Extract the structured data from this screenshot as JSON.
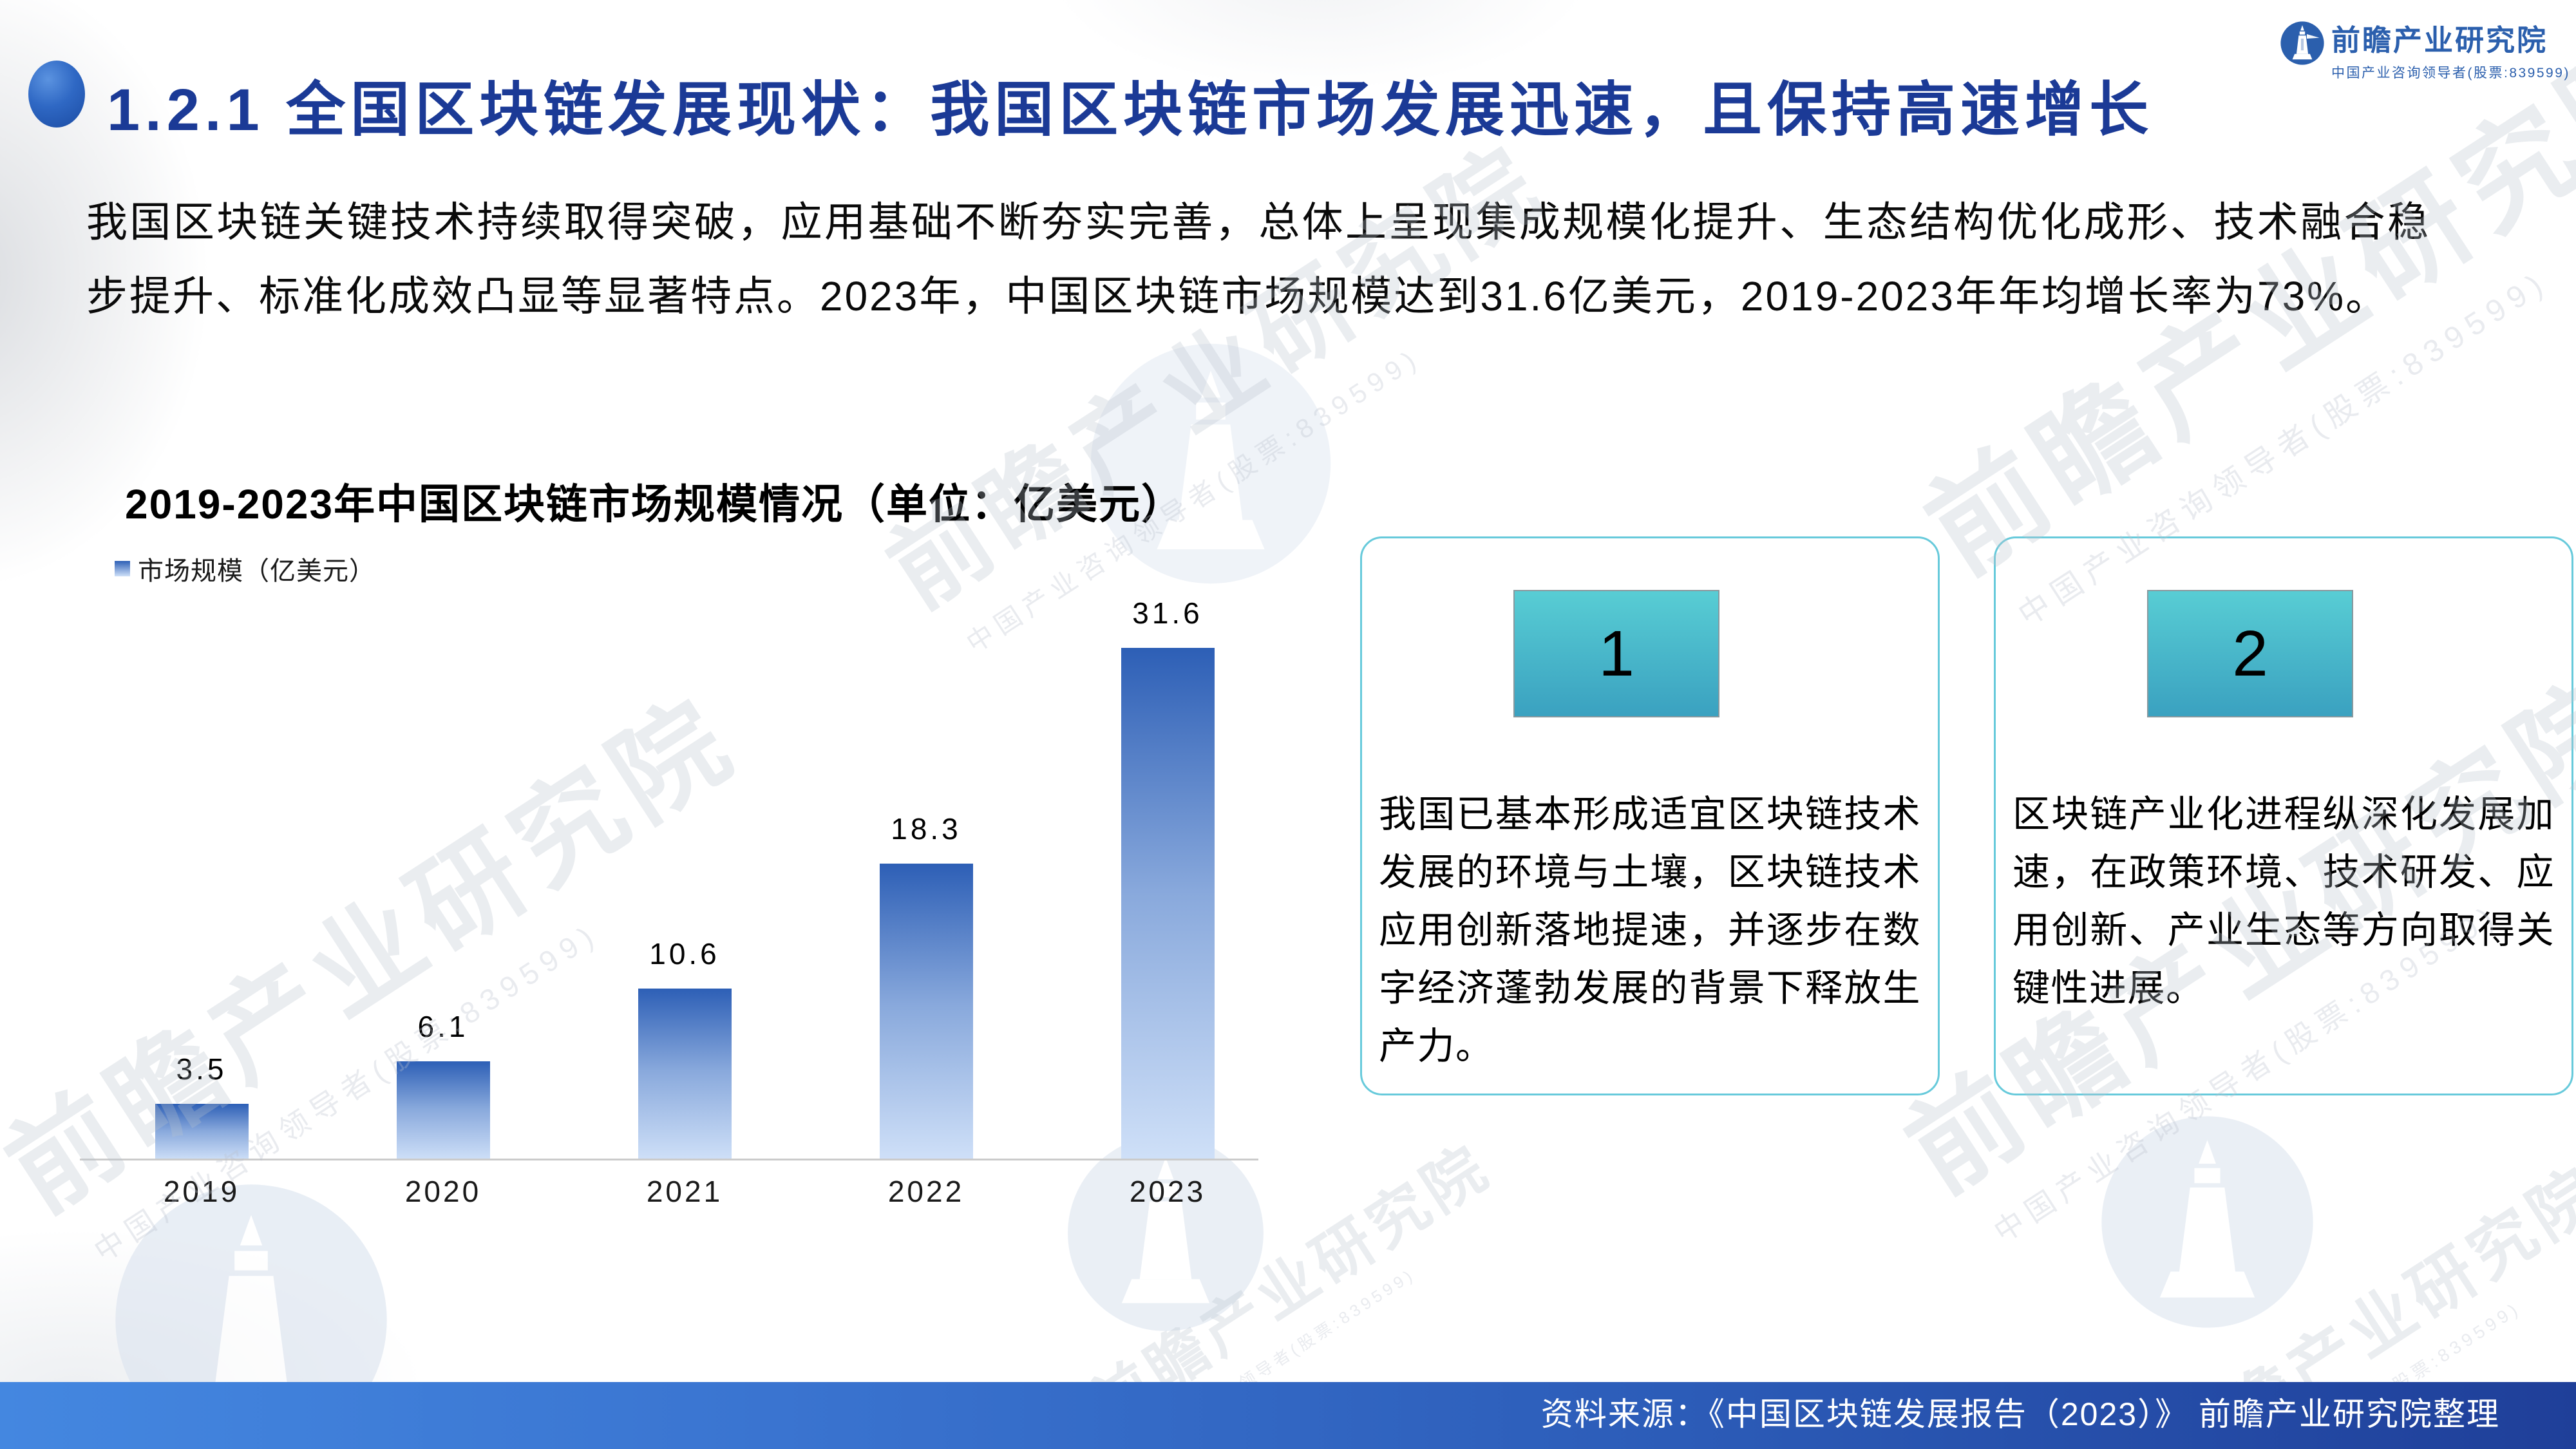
{
  "header": {
    "title": "1.2.1 全国区块链发展现状：我国区块链市场发展迅速，且保持高速增长"
  },
  "logo": {
    "name": "前瞻产业研究院",
    "tagline": "中国产业咨询领导者(股票:839599)"
  },
  "body": {
    "text": "我国区块链关键技术持续取得突破，应用基础不断夯实完善，总体上呈现集成规模化提升、生态结构优化成形、技术融合稳步提升、标准化成效凸显等显著特点。2023年，中国区块链市场规模达到31.6亿美元，2019-2023年年均增长率为73%。"
  },
  "chart_data": {
    "type": "bar",
    "title": "2019-2023年中国区块链市场规模情况（单位：亿美元）",
    "legend_label": "市场规模（亿美元）",
    "legend_position": "top-left",
    "categories": [
      "2019",
      "2020",
      "2021",
      "2022",
      "2023"
    ],
    "values": [
      3.5,
      6.1,
      10.6,
      18.3,
      31.6
    ],
    "value_labels": [
      "3.5",
      "6.1",
      "10.6",
      "18.3",
      "31.6"
    ],
    "xlabel": "",
    "ylabel": "",
    "ylim": [
      0,
      33
    ],
    "grid": false,
    "bar_color_top": "#2d5fb6",
    "bar_color_bottom": "#cfe0f8"
  },
  "cards": [
    {
      "number": "1",
      "text": "我国已基本形成适宜区块链技术发展的环境与土壤，区块链技术应用创新落地提速，并逐步在数字经济蓬勃发展的背景下释放生产力。"
    },
    {
      "number": "2",
      "text": "区块链产业化进程纵深化发展加速，在政策环境、技术研发、应用创新、产业生态等方向取得关键性进展。"
    }
  ],
  "footer": {
    "source": "资料来源：《中国区块链发展报告（2023）》  前瞻产业研究院整理"
  },
  "watermark": {
    "text": "前瞻产业研究院",
    "subtext": "中国产业咨询领导者(股票:839599)"
  },
  "colors": {
    "title_blue": "#1b3a96",
    "logo_blue": "#2b5fad",
    "bar_gradient_top": "#2d5fb6",
    "bar_gradient_bottom": "#cfe0f8",
    "card_border_cyan": "#67cadb",
    "badge_teal_top": "#58cdd4",
    "badge_teal_bottom": "#3aa1c0",
    "footer_gradient_left": "#4487e0",
    "footer_gradient_right": "#1f3f99"
  }
}
